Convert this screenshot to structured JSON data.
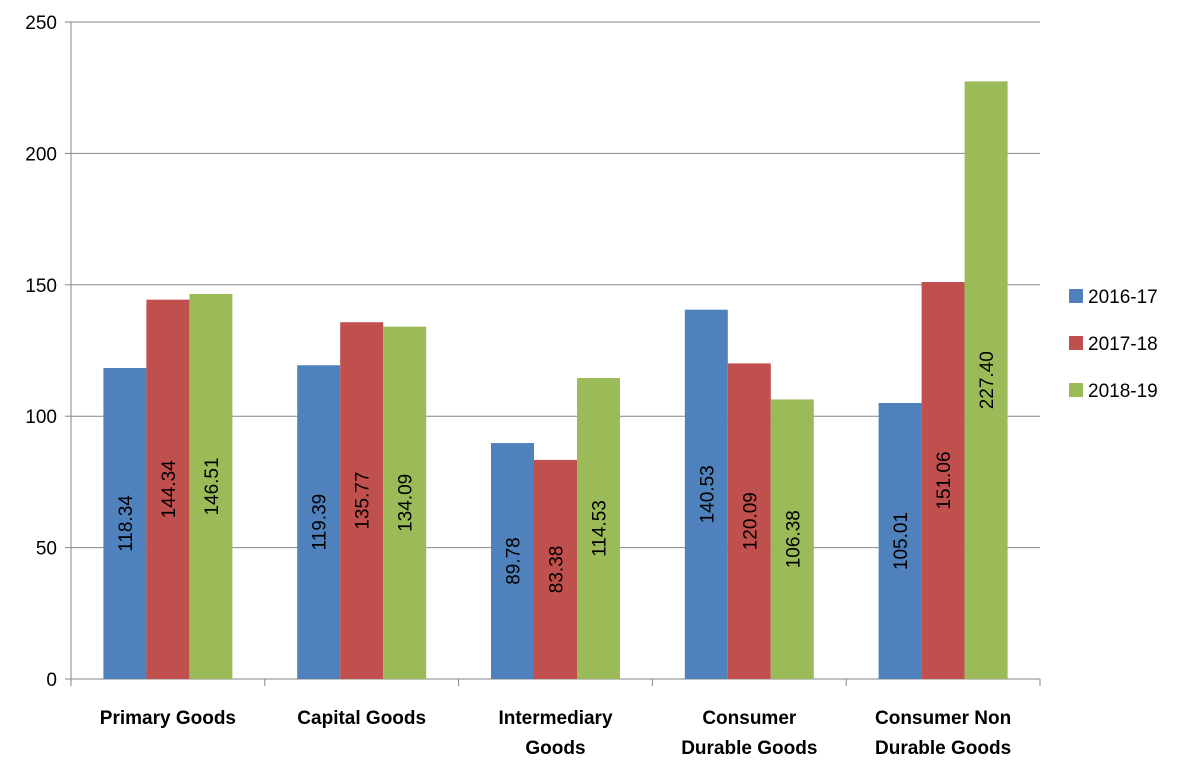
{
  "chart_data": {
    "type": "bar",
    "categories": [
      [
        "Primary Goods"
      ],
      [
        "Capital Goods"
      ],
      [
        "Intermediary",
        "Goods"
      ],
      [
        "Consumer",
        "Durable Goods"
      ],
      [
        "Consumer Non",
        "Durable Goods"
      ]
    ],
    "series": [
      {
        "name": "2016-17",
        "color": "#4F81BD",
        "values": [
          118.34,
          119.39,
          89.78,
          140.53,
          105.01
        ],
        "labels": [
          "118.34",
          "119.39",
          "89.78",
          "140.53",
          "105.01"
        ]
      },
      {
        "name": "2017-18",
        "color": "#C0504D",
        "values": [
          144.34,
          135.77,
          83.38,
          120.09,
          151.06
        ],
        "labels": [
          "144.34",
          "135.77",
          "83.38",
          "120.09",
          "151.06"
        ]
      },
      {
        "name": "2018-19",
        "color": "#9BBB59",
        "values": [
          146.51,
          134.09,
          114.53,
          106.38,
          227.4
        ],
        "labels": [
          "146.51",
          "134.09",
          "114.53",
          "106.38",
          "227.40"
        ]
      }
    ],
    "ylim": [
      0,
      250
    ],
    "yticks": [
      "0",
      "50",
      "100",
      "150",
      "200",
      "250"
    ],
    "grid": true,
    "legend_position": "right",
    "data_labels": "vertical, inside bars"
  }
}
